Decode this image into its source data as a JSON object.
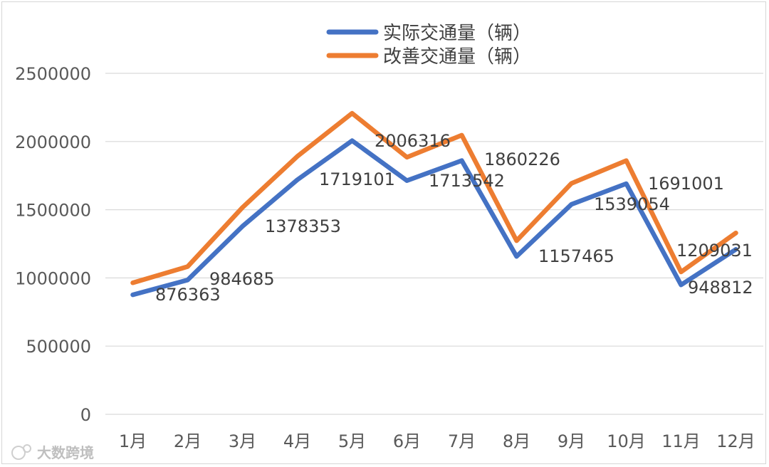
{
  "chart_data": {
    "type": "line",
    "title": "",
    "xlabel": "",
    "ylabel": "",
    "categories": [
      "1月",
      "2月",
      "3月",
      "4月",
      "5月",
      "6月",
      "7月",
      "8月",
      "9月",
      "10月",
      "11月",
      "12月"
    ],
    "ylim": [
      0,
      2500000
    ],
    "yticks": [
      0,
      500000,
      1000000,
      1500000,
      2000000,
      2500000
    ],
    "grid": true,
    "legend_position": "top-center",
    "series": [
      {
        "name": "实际交通量（辆）",
        "color": "#4472C4",
        "values": [
          876363,
          984685,
          1378353,
          1719101,
          2006316,
          1713542,
          1860226,
          1157465,
          1539054,
          1691001,
          948812,
          1209031
        ]
      },
      {
        "name": "改善交通量（辆）",
        "color": "#ED7D31",
        "values": [
          963999,
          1083154,
          1516188,
          1891011,
          2206948,
          1884896,
          2046249,
          1273212,
          1692959,
          1860101,
          1043693,
          1329934
        ]
      }
    ],
    "data_labels": [
      "876363",
      "984685",
      "1378353",
      "1719101",
      "2006316",
      "1713542",
      "1860226",
      "1157465",
      "1539054",
      "1691001",
      "948812",
      "1209031"
    ]
  },
  "watermark": "大数跨境"
}
